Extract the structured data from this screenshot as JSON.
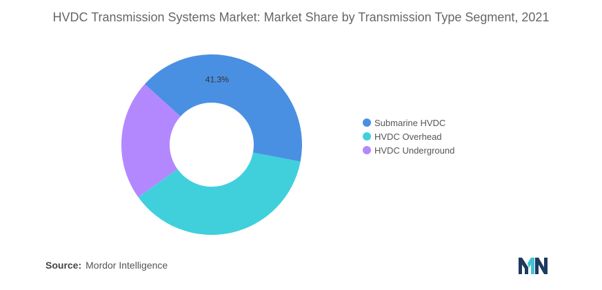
{
  "title": "HVDC Transmission Systems Market: Market Share by Transmission Type Segment, 2021",
  "chart_data": {
    "type": "pie",
    "donut": true,
    "categories": [
      "Submarine HVDC",
      "HVDC Overhead",
      "HVDC Underground"
    ],
    "values": [
      41.3,
      37.1,
      21.6
    ],
    "colors": [
      "#4a90e2",
      "#40d0dc",
      "#b388ff"
    ],
    "data_labels": [
      "41.3%",
      "",
      ""
    ],
    "legend_placement": "right"
  },
  "source": {
    "label": "Source:",
    "text": "Mordor Intelligence"
  },
  "logo": {
    "icon": "mordor-intelligence-logo",
    "colors": [
      "#1f3a5f",
      "#40c4d0"
    ]
  }
}
